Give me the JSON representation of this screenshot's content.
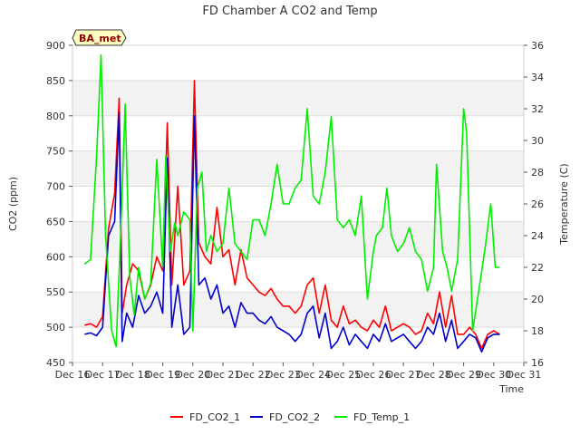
{
  "chart_data": {
    "type": "line",
    "title": "FD Chamber A CO2 and Temp",
    "badge": "BA_met",
    "xlabel": "Time",
    "ylabel": "CO2 (ppm)",
    "y2label": "Temperature (C)",
    "xlim": [
      16,
      31
    ],
    "ylim": [
      450,
      900
    ],
    "y2lim": [
      16,
      36
    ],
    "x_ticks": [
      16,
      17,
      18,
      19,
      20,
      21,
      22,
      23,
      24,
      25,
      26,
      27,
      28,
      29,
      30,
      31
    ],
    "x_tick_labels": [
      "Dec 16",
      "Dec 17",
      "Dec 18",
      "Dec 19",
      "Dec 20",
      "Dec 21",
      "Dec 22",
      "Dec 23",
      "Dec 24",
      "Dec 25",
      "Dec 26",
      "Dec 27",
      "Dec 28",
      "Dec 29",
      "Dec 30",
      "Dec 31"
    ],
    "y_ticks": [
      450,
      500,
      550,
      600,
      650,
      700,
      750,
      800,
      850,
      900
    ],
    "y2_ticks": [
      16,
      18,
      20,
      22,
      24,
      26,
      28,
      30,
      32,
      34,
      36
    ],
    "grid": true,
    "shaded_bands": [
      [
        500,
        550
      ],
      [
        600,
        650
      ],
      [
        700,
        750
      ],
      [
        800,
        850
      ]
    ],
    "legend_position": "bottom",
    "series": [
      {
        "name": "FD_CO2_1",
        "color": "#ff0000",
        "axis": "left",
        "x": [
          16.4,
          16.6,
          16.8,
          17.0,
          17.2,
          17.4,
          17.55,
          17.65,
          17.8,
          18.0,
          18.2,
          18.4,
          18.6,
          18.8,
          19.0,
          19.15,
          19.3,
          19.5,
          19.7,
          19.9,
          20.05,
          20.2,
          20.4,
          20.6,
          20.8,
          21.0,
          21.2,
          21.4,
          21.6,
          21.8,
          22.0,
          22.2,
          22.4,
          22.6,
          22.8,
          23.0,
          23.2,
          23.4,
          23.6,
          23.8,
          24.0,
          24.2,
          24.4,
          24.6,
          24.8,
          25.0,
          25.2,
          25.4,
          25.6,
          25.8,
          26.0,
          26.2,
          26.4,
          26.6,
          26.8,
          27.0,
          27.2,
          27.4,
          27.6,
          27.8,
          28.0,
          28.2,
          28.4,
          28.6,
          28.8,
          29.0,
          29.2,
          29.4,
          29.6,
          29.8,
          30.0,
          30.2
        ],
        "values": [
          503,
          505,
          500,
          515,
          640,
          690,
          825,
          520,
          560,
          590,
          580,
          540,
          560,
          600,
          580,
          790,
          560,
          700,
          560,
          580,
          850,
          620,
          600,
          590,
          670,
          600,
          610,
          560,
          610,
          570,
          560,
          550,
          545,
          555,
          540,
          530,
          530,
          520,
          530,
          560,
          570,
          520,
          560,
          510,
          500,
          530,
          505,
          510,
          500,
          495,
          510,
          500,
          530,
          495,
          500,
          505,
          500,
          490,
          495,
          520,
          505,
          550,
          500,
          545,
          490,
          490,
          500,
          490,
          470,
          490,
          495,
          490
        ]
      },
      {
        "name": "FD_CO2_2",
        "color": "#0000cc",
        "axis": "left",
        "x": [
          16.4,
          16.6,
          16.8,
          17.0,
          17.2,
          17.4,
          17.55,
          17.65,
          17.8,
          18.0,
          18.2,
          18.4,
          18.6,
          18.8,
          19.0,
          19.15,
          19.3,
          19.5,
          19.7,
          19.9,
          20.05,
          20.2,
          20.4,
          20.6,
          20.8,
          21.0,
          21.2,
          21.4,
          21.6,
          21.8,
          22.0,
          22.2,
          22.4,
          22.6,
          22.8,
          23.0,
          23.2,
          23.4,
          23.6,
          23.8,
          24.0,
          24.2,
          24.4,
          24.6,
          24.8,
          25.0,
          25.2,
          25.4,
          25.6,
          25.8,
          26.0,
          26.2,
          26.4,
          26.6,
          26.8,
          27.0,
          27.2,
          27.4,
          27.6,
          27.8,
          28.0,
          28.2,
          28.4,
          28.6,
          28.8,
          29.0,
          29.2,
          29.4,
          29.6,
          29.8,
          30.0,
          30.2
        ],
        "values": [
          490,
          492,
          488,
          500,
          630,
          650,
          805,
          480,
          520,
          500,
          545,
          520,
          530,
          550,
          520,
          740,
          500,
          560,
          490,
          500,
          800,
          560,
          570,
          540,
          560,
          520,
          530,
          500,
          535,
          520,
          520,
          510,
          505,
          515,
          500,
          495,
          490,
          480,
          490,
          520,
          530,
          485,
          520,
          470,
          480,
          500,
          475,
          490,
          480,
          470,
          490,
          480,
          505,
          480,
          485,
          490,
          480,
          470,
          480,
          500,
          490,
          520,
          480,
          510,
          470,
          480,
          490,
          485,
          465,
          485,
          490,
          490
        ]
      },
      {
        "name": "FD_Temp_1",
        "color": "#00ee00",
        "axis": "right",
        "x": [
          16.4,
          16.6,
          16.8,
          16.95,
          17.1,
          17.3,
          17.45,
          17.6,
          17.75,
          17.9,
          18.05,
          18.2,
          18.4,
          18.6,
          18.8,
          19.0,
          19.1,
          19.25,
          19.4,
          19.5,
          19.7,
          19.9,
          20.0,
          20.15,
          20.3,
          20.45,
          20.6,
          20.8,
          21.0,
          21.2,
          21.4,
          21.6,
          21.8,
          22.0,
          22.2,
          22.4,
          22.6,
          22.8,
          23.0,
          23.2,
          23.4,
          23.6,
          23.8,
          24.0,
          24.2,
          24.4,
          24.6,
          24.8,
          25.0,
          25.2,
          25.4,
          25.6,
          25.8,
          26.0,
          26.1,
          26.3,
          26.45,
          26.6,
          26.8,
          27.0,
          27.2,
          27.4,
          27.6,
          27.8,
          28.0,
          28.1,
          28.3,
          28.45,
          28.6,
          28.8,
          29.0,
          29.1,
          29.3,
          29.5,
          29.7,
          29.9,
          30.05,
          30.2
        ],
        "values": [
          22.2,
          22.5,
          29,
          35.4,
          24,
          18,
          17,
          24,
          32.3,
          21.5,
          19,
          22,
          20,
          21,
          28.8,
          22,
          29,
          23,
          24.8,
          24,
          25.5,
          25,
          18,
          27,
          28,
          23,
          24,
          23,
          23.5,
          27,
          23.5,
          23,
          22.5,
          25,
          25,
          24,
          26,
          28.5,
          26,
          26,
          27,
          27.5,
          32,
          26.5,
          26,
          28,
          31.5,
          25,
          24.5,
          25,
          24,
          26.5,
          20,
          23,
          24,
          24.5,
          27,
          24,
          23,
          23.5,
          24.5,
          23,
          22.5,
          20.5,
          22,
          28.5,
          23,
          22,
          20.5,
          22.5,
          32,
          30.5,
          18,
          20.5,
          23,
          26,
          22,
          22
        ]
      }
    ]
  }
}
